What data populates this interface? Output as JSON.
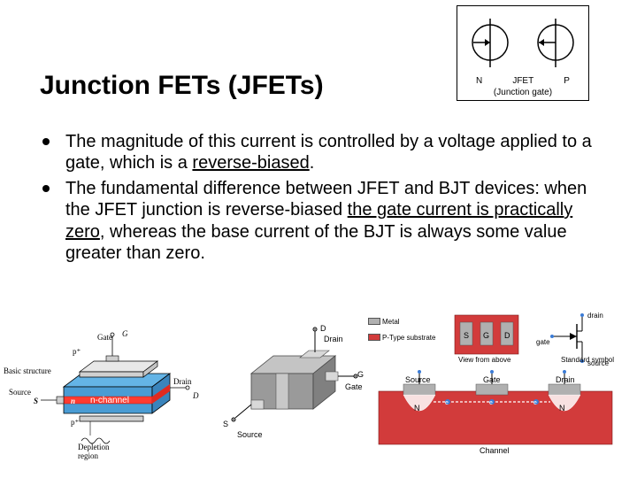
{
  "title": "Junction FETs (JFETs)",
  "symbol_box": {
    "left_label": "N",
    "center_label": "JFET",
    "right_label": "P",
    "caption": "(Junction gate)",
    "circle_stroke": "#000000",
    "line_stroke": "#000000"
  },
  "bullets": [
    {
      "parts": [
        {
          "t": "The magnitude of this current is controlled by a voltage applied to a gate, which is a ",
          "u": false
        },
        {
          "t": "reverse-biased",
          "u": true
        },
        {
          "t": ".",
          "u": false
        }
      ]
    },
    {
      "parts": [
        {
          "t": "The fundamental difference between JFET and BJT devices: when the JFET junction is reverse-biased ",
          "u": false
        },
        {
          "t": "the gate current is practically zero",
          "u": true
        },
        {
          "t": ", whereas the base current of the BJT is always some value greater than zero.",
          "u": false
        }
      ]
    }
  ],
  "diagram1": {
    "labels": {
      "basic": "Basic structure",
      "source_word": "Source",
      "drain_word": "Drain",
      "gate": "Gate",
      "S": "S",
      "D": "D",
      "G": "G",
      "p_top": "p⁺",
      "p_bot": "p⁺",
      "n": "n",
      "nchannel": "n-channel",
      "depletion": "Depletion\nregion"
    },
    "colors": {
      "n_fill": "#64b4e6",
      "channel_fill": "#ff3b30",
      "p_fill": "#e8e8e8",
      "outline": "#000000"
    }
  },
  "diagram2": {
    "labels": {
      "D": "D",
      "Drain": "Drain",
      "G": "G",
      "Gate": "Gate",
      "S": "S",
      "Source": "Source"
    },
    "colors": {
      "body": "#9a9a9a",
      "body_light": "#c4c4c4",
      "contact": "#bfbfbf",
      "outline": "#444444"
    }
  },
  "diagram3": {
    "legend": [
      {
        "label": "Metal",
        "color": "#b0b0b0"
      },
      {
        "label": "P-Type substrate",
        "color": "#d23b3b"
      }
    ],
    "topview": {
      "bg": "#d23b3b",
      "metal": "#b0b0b0",
      "S": "S",
      "G": "G",
      "D": "D",
      "caption": "View from above"
    },
    "circuit": {
      "drain": "drain",
      "gate": "gate",
      "source": "source",
      "caption": "Standard symbol",
      "line": "#000000"
    },
    "cross": {
      "substrate": "#d23b3b",
      "metal": "#b0b0b0",
      "oxide": "#ffffff",
      "Source": "Source",
      "Gate": "Gate",
      "Drain": "Drain",
      "N": "N",
      "Channel": "Channel",
      "electron": "#3a7bd5"
    }
  }
}
